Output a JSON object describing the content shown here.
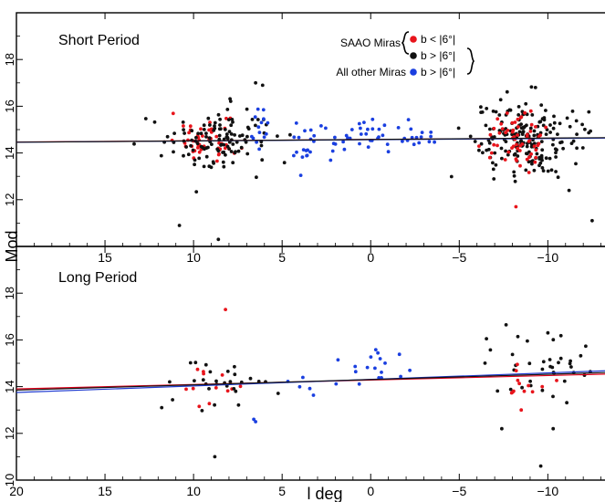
{
  "chart_data": [
    {
      "type": "scatter",
      "panel_label": "Short Period",
      "xlim": [
        20,
        -14
      ],
      "ylim": [
        10,
        20
      ],
      "y_ticks": [
        12,
        14,
        16,
        18
      ],
      "x_ticks": [
        15,
        10,
        5,
        0,
        -5,
        -10
      ],
      "x_tick_labels": [
        "15",
        "10",
        "5",
        "0",
        "−5",
        "−10"
      ],
      "fit_lines": [
        {
          "color": "#e0001b",
          "x": [
            20,
            -14
          ],
          "y": [
            14.47,
            14.65
          ]
        },
        {
          "color": "#1f3bd0",
          "x": [
            20,
            -14
          ],
          "y": [
            14.46,
            14.64
          ]
        },
        {
          "color": "#111111",
          "x": [
            20,
            -14
          ],
          "y": [
            14.46,
            14.66
          ]
        }
      ],
      "clusters": [
        {
          "series": "saao_low",
          "color": "#e8141b",
          "xc": 9.3,
          "yc": 14.6,
          "sx": 0.8,
          "sy": 0.55,
          "n": 50,
          "seed": 11
        },
        {
          "series": "saao_high",
          "color": "#111111",
          "xc": 8.8,
          "yc": 14.5,
          "sx": 1.6,
          "sy": 0.7,
          "n": 120,
          "seed": 12
        },
        {
          "series": "other",
          "color": "#1a3fe0",
          "xc": 6.3,
          "yc": 15.0,
          "sx": 0.3,
          "sy": 0.6,
          "n": 14,
          "seed": 13
        },
        {
          "series": "other",
          "color": "#1a3fe0",
          "xc": 4.0,
          "yc": 14.5,
          "sx": 0.5,
          "sy": 0.45,
          "n": 20,
          "seed": 14
        },
        {
          "series": "other",
          "color": "#1a3fe0",
          "xc": 1.8,
          "yc": 14.6,
          "sx": 0.4,
          "sy": 0.4,
          "n": 12,
          "seed": 15
        },
        {
          "series": "other",
          "color": "#1a3fe0",
          "xc": -0.3,
          "yc": 14.7,
          "sx": 0.7,
          "sy": 0.4,
          "n": 20,
          "seed": 16
        },
        {
          "series": "other",
          "color": "#1a3fe0",
          "xc": -2.7,
          "yc": 14.8,
          "sx": 0.5,
          "sy": 0.4,
          "n": 14,
          "seed": 17
        },
        {
          "series": "saao_high",
          "color": "#111111",
          "xc": -8.9,
          "yc": 14.6,
          "sx": 1.5,
          "sy": 0.8,
          "n": 190,
          "seed": 18
        },
        {
          "series": "saao_low",
          "color": "#e8141b",
          "xc": -8.3,
          "yc": 14.6,
          "sx": 0.8,
          "sy": 0.6,
          "n": 60,
          "seed": 19
        }
      ],
      "points": [
        {
          "x": 10.8,
          "y": 10.9,
          "color": "#111111"
        },
        {
          "x": 8.6,
          "y": 10.3,
          "color": "#111111"
        },
        {
          "x": -12.5,
          "y": 11.1,
          "color": "#111111"
        },
        {
          "x": -8.2,
          "y": 11.7,
          "color": "#e8141b"
        },
        {
          "x": 6.5,
          "y": 17.0,
          "color": "#111111"
        },
        {
          "x": 6.1,
          "y": 16.9,
          "color": "#111111"
        },
        {
          "x": -9.3,
          "y": 16.8,
          "color": "#111111"
        },
        {
          "x": -11.2,
          "y": 12.4,
          "color": "#111111"
        }
      ]
    },
    {
      "type": "scatter",
      "panel_label": "Long Period",
      "xlim": [
        20,
        -14
      ],
      "ylim": [
        10,
        20
      ],
      "y_ticks": [
        10,
        12,
        14,
        16,
        18
      ],
      "x_ticks": [
        20,
        15,
        10,
        5,
        0,
        -5,
        -10
      ],
      "x_tick_labels": [
        "20",
        "15",
        "10",
        "5",
        "0",
        "−5",
        "−10"
      ],
      "fit_lines": [
        {
          "color": "#e0001b",
          "x": [
            20,
            -14
          ],
          "y": [
            13.9,
            14.55
          ]
        },
        {
          "color": "#1f3bd0",
          "x": [
            20,
            -14
          ],
          "y": [
            13.75,
            14.7
          ]
        },
        {
          "color": "#111111",
          "x": [
            20,
            -14
          ],
          "y": [
            13.85,
            14.62
          ]
        }
      ],
      "clusters": [
        {
          "series": "saao_low",
          "color": "#e8141b",
          "xc": 9.0,
          "yc": 14.0,
          "sx": 1.0,
          "sy": 0.5,
          "n": 12,
          "seed": 21
        },
        {
          "series": "saao_high",
          "color": "#111111",
          "xc": 8.0,
          "yc": 14.1,
          "sx": 1.5,
          "sy": 0.6,
          "n": 28,
          "seed": 22
        },
        {
          "series": "other",
          "color": "#1a3fe0",
          "xc": 0.5,
          "yc": 14.8,
          "sx": 1.0,
          "sy": 0.4,
          "n": 18,
          "seed": 23
        },
        {
          "series": "other",
          "color": "#1a3fe0",
          "xc": 4.2,
          "yc": 14.1,
          "sx": 0.6,
          "sy": 0.3,
          "n": 5,
          "seed": 24
        },
        {
          "series": "saao_high",
          "color": "#111111",
          "xc": -9.5,
          "yc": 14.7,
          "sx": 1.6,
          "sy": 0.7,
          "n": 38,
          "seed": 25
        },
        {
          "series": "saao_low",
          "color": "#e8141b",
          "xc": -8.7,
          "yc": 14.4,
          "sx": 0.9,
          "sy": 0.6,
          "n": 12,
          "seed": 26
        }
      ],
      "points": [
        {
          "x": 8.2,
          "y": 17.3,
          "color": "#e8141b"
        },
        {
          "x": 8.8,
          "y": 11.0,
          "color": "#111111"
        },
        {
          "x": 11.8,
          "y": 13.1,
          "color": "#111111"
        },
        {
          "x": 6.6,
          "y": 12.6,
          "color": "#1a3fe0"
        },
        {
          "x": 6.5,
          "y": 12.5,
          "color": "#1a3fe0"
        },
        {
          "x": -10.0,
          "y": 16.3,
          "color": "#111111"
        },
        {
          "x": -9.6,
          "y": 10.6,
          "color": "#111111"
        },
        {
          "x": -8.5,
          "y": 13.0,
          "color": "#e8141b"
        },
        {
          "x": -7.4,
          "y": 12.2,
          "color": "#111111"
        },
        {
          "x": -10.3,
          "y": 12.2,
          "color": "#111111"
        }
      ]
    }
  ],
  "axes": {
    "xlabel": "l deg",
    "ylabel": "Mod"
  },
  "legend": {
    "saao_label": "SAAO Miras",
    "other_label": "All other Miras",
    "entry_1": "b < |6°|",
    "entry_2": "b > |6°|",
    "entry_3": "b > |6°|",
    "colors": {
      "entry_1": "#e8141b",
      "entry_2": "#111111",
      "entry_3": "#1a3fe0"
    }
  }
}
